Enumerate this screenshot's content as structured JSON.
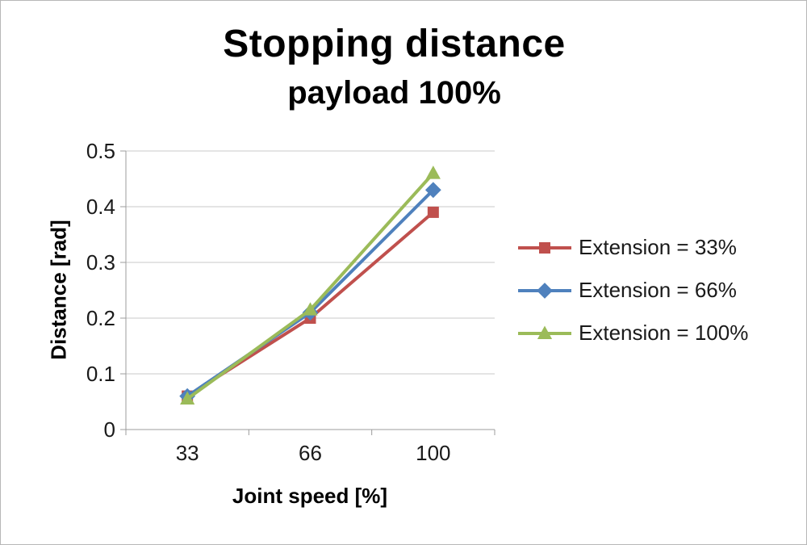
{
  "page": {
    "background": "#ffffff",
    "frame_border_color": "#b7b7b7"
  },
  "chart_data": {
    "type": "line",
    "title": "Stopping distance",
    "subtitle": "payload 100%",
    "xlabel": "Joint speed [%]",
    "ylabel": "Distance [rad]",
    "categories": [
      "33",
      "66",
      "100"
    ],
    "series": [
      {
        "name": "Extension = 33%",
        "marker": "square",
        "color": "#c0504d",
        "values": [
          0.06,
          0.2,
          0.39
        ]
      },
      {
        "name": "Extension = 66%",
        "marker": "diamond",
        "color": "#4f81bd",
        "values": [
          0.06,
          0.21,
          0.43
        ]
      },
      {
        "name": "Extension = 100%",
        "marker": "triangle",
        "color": "#9bbb59",
        "values": [
          0.055,
          0.215,
          0.46
        ]
      }
    ],
    "ylim": [
      0,
      0.5
    ],
    "ytick_step": 0.1,
    "ytick_labels": [
      "0.5",
      "0.4",
      "0.3",
      "0.2",
      "0.1",
      "0"
    ],
    "grid": true,
    "legend_position": "right",
    "axis_color": "#9c9c9c",
    "grid_color": "#c9c9c9",
    "text_color": "#1a1a1a"
  }
}
